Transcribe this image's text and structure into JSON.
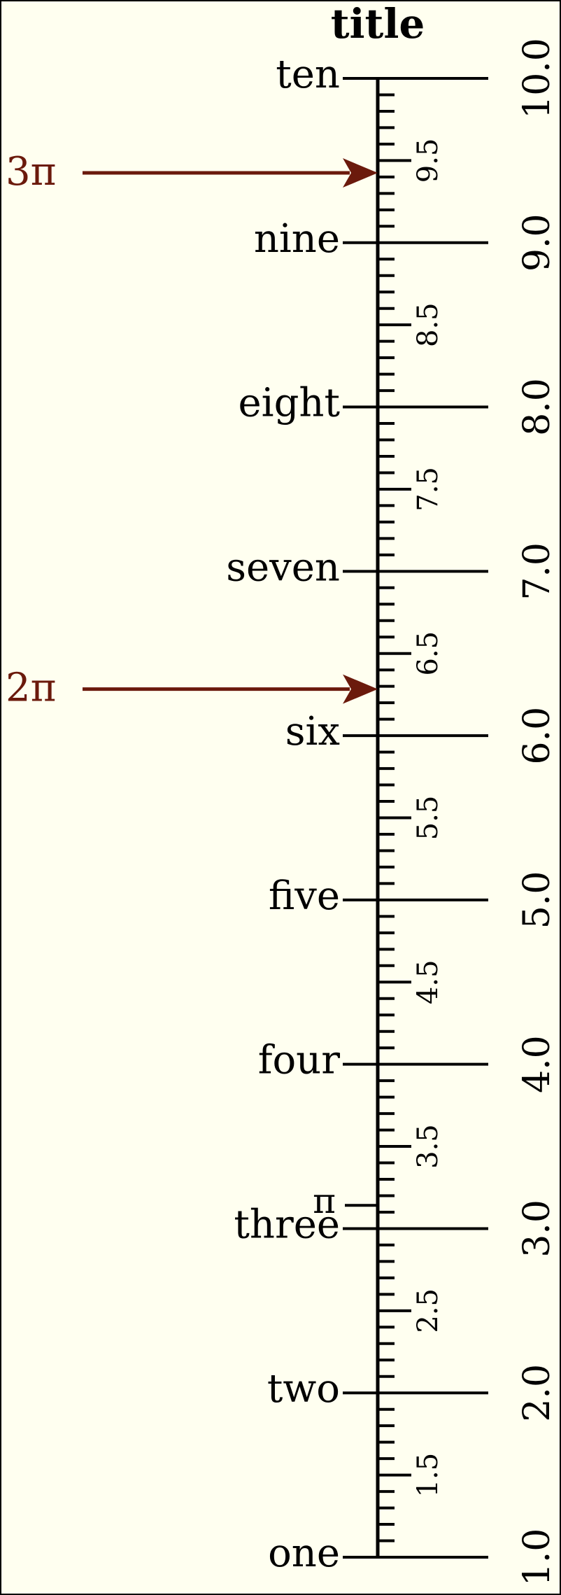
{
  "title": "title",
  "scale": {
    "min": 1.0,
    "max": 10.0,
    "minor_step": 0.1,
    "major_values": [
      1.0,
      2.0,
      3.0,
      4.0,
      5.0,
      6.0,
      7.0,
      8.0,
      9.0,
      10.0
    ],
    "right_labels": [
      "1.0",
      "2.0",
      "3.0",
      "4.0",
      "5.0",
      "6.0",
      "7.0",
      "8.0",
      "9.0",
      "10.0"
    ],
    "word_labels": [
      "one",
      "two",
      "three",
      "four",
      "five",
      "six",
      "seven",
      "eight",
      "nine",
      "ten"
    ],
    "half_values": [
      1.5,
      2.5,
      3.5,
      4.5,
      5.5,
      6.5,
      7.5,
      8.5,
      9.5
    ],
    "half_labels": [
      "1.5",
      "2.5",
      "3.5",
      "4.5",
      "5.5",
      "6.5",
      "7.5",
      "8.5",
      "9.5"
    ],
    "pi_marker": {
      "value": 3.14159,
      "label": "π"
    }
  },
  "arrows": [
    {
      "label": "3π",
      "value": 9.42478
    },
    {
      "label": "2π",
      "value": 6.28319
    }
  ],
  "colors": {
    "background": "#fffff0",
    "ink": "#000000",
    "arrow": "#6b1a0c"
  }
}
